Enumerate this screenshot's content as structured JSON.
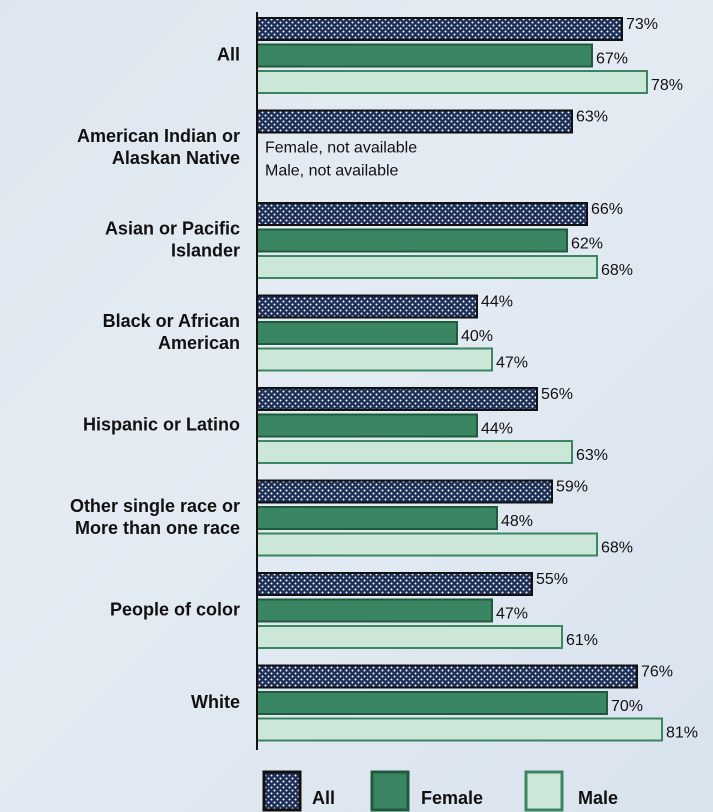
{
  "chart_data": {
    "type": "bar",
    "orientation": "horizontal",
    "categories": [
      "All",
      "American Indian or Alaskan Native",
      "Asian or Pacific Islander",
      "Black or African American",
      "Hispanic or Latino",
      "Other single race or More than one race",
      "People of color",
      "White"
    ],
    "category_lines": [
      [
        "All"
      ],
      [
        "American Indian or",
        "Alaskan Native"
      ],
      [
        "Asian or Pacific",
        "Islander"
      ],
      [
        "Black or African",
        "American"
      ],
      [
        "Hispanic or Latino"
      ],
      [
        "Other single race or",
        "More than one race"
      ],
      [
        "People of color"
      ],
      [
        "White"
      ]
    ],
    "series": [
      {
        "name": "All",
        "values": [
          73,
          63,
          66,
          44,
          56,
          59,
          55,
          76
        ],
        "labels": [
          "73%",
          "63%",
          "66%",
          "44%",
          "56%",
          "59%",
          "55%",
          "76%"
        ]
      },
      {
        "name": "Female",
        "values": [
          67,
          null,
          62,
          40,
          44,
          48,
          47,
          70
        ],
        "labels": [
          "67%",
          null,
          "62%",
          "40%",
          "44%",
          "48%",
          "47%",
          "70%"
        ]
      },
      {
        "name": "Male",
        "values": [
          78,
          null,
          68,
          47,
          63,
          68,
          61,
          81
        ],
        "labels": [
          "78%",
          null,
          "68%",
          "47%",
          "63%",
          "68%",
          "61%",
          "81%"
        ]
      }
    ],
    "annotations": [
      "Female, not available",
      "Male, not available"
    ],
    "xlim": [
      0,
      100
    ],
    "grid": false,
    "legend": {
      "placement": "bottom",
      "entries": [
        "All",
        "Female",
        "Male"
      ]
    },
    "colors": {
      "All": "#1b2f58",
      "All_pattern_dots": "#ffffff",
      "Female": "#3a8562",
      "Female_border": "#1f5a3c",
      "Male": "#cce6d8",
      "Male_border": "#3a8562",
      "axis": "#111111"
    }
  }
}
